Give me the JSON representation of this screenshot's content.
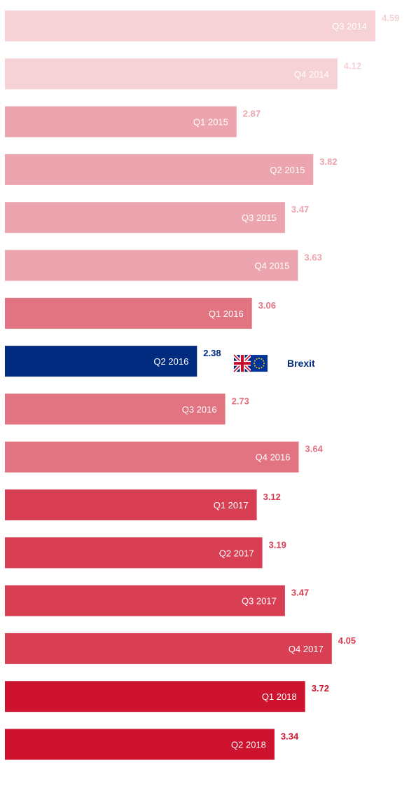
{
  "chart_data": {
    "type": "bar",
    "orientation": "horizontal",
    "categories": [
      "Q3 2014",
      "Q4 2014",
      "Q1 2015",
      "Q2 2015",
      "Q3 2015",
      "Q4 2015",
      "Q1 2016",
      "Q2 2016",
      "Q3 2016",
      "Q4 2016",
      "Q1 2017",
      "Q2 2017",
      "Q3 2017",
      "Q4 2017",
      "Q1 2018",
      "Q2 2018"
    ],
    "values": [
      4.59,
      4.12,
      2.87,
      3.82,
      3.47,
      3.63,
      3.06,
      2.38,
      2.73,
      3.64,
      3.12,
      3.19,
      3.47,
      4.05,
      3.72,
      3.34
    ],
    "value_labels": [
      "4.59",
      "4.12",
      "2.87",
      "3.82",
      "3.47",
      "3.63",
      "3.06",
      "2.38",
      "2.73",
      "3.64",
      "3.12",
      "3.19",
      "3.47",
      "4.05",
      "3.72",
      "3.34"
    ],
    "bar_colors": [
      "#f6d1d5",
      "#f6d1d5",
      "#eca4ae",
      "#eca4ae",
      "#eca4ae",
      "#eca4ae",
      "#e27482",
      "#002b7f",
      "#e27482",
      "#e27482",
      "#d83f53",
      "#d83f53",
      "#d83f53",
      "#d83f53",
      "#cd132d",
      "#cd132d"
    ],
    "value_label_colors": [
      "#f6d1d5",
      "#f6d1d5",
      "#eca4ae",
      "#eca4ae",
      "#eca4ae",
      "#eca4ae",
      "#e27482",
      "#002b7f",
      "#e27482",
      "#e27482",
      "#d83f53",
      "#d83f53",
      "#d83f53",
      "#d83f53",
      "#cd132d",
      "#cd132d"
    ],
    "title": "",
    "xlabel": "",
    "ylabel": "",
    "xlim": [
      0,
      5
    ],
    "grid": false,
    "annotation": {
      "text": "Brexit",
      "category": "Q2 2016",
      "icon": "uk-eu-flag-icon",
      "color": "#002b7f"
    }
  }
}
